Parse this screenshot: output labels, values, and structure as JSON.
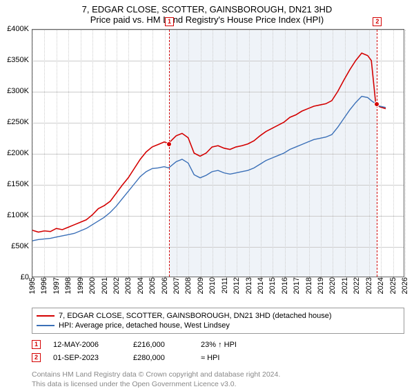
{
  "title_line1": "7, EDGAR CLOSE, SCOTTER, GAINSBOROUGH, DN21 3HD",
  "title_line2": "Price paid vs. HM Land Registry's House Price Index (HPI)",
  "chart": {
    "type": "line",
    "background_color": "#ffffff",
    "grid_color": "#cccccc",
    "y_axis": {
      "min": 0,
      "max": 400000,
      "step": 50000,
      "labels": [
        "£0",
        "£50K",
        "£100K",
        "£150K",
        "£200K",
        "£250K",
        "£300K",
        "£350K",
        "£400K"
      ]
    },
    "x_axis": {
      "min": 1995,
      "max": 2026,
      "labels": [
        "1995",
        "1996",
        "1997",
        "1998",
        "1999",
        "2000",
        "2001",
        "2002",
        "2003",
        "2004",
        "2005",
        "2006",
        "2007",
        "2008",
        "2009",
        "2010",
        "2011",
        "2012",
        "2013",
        "2014",
        "2015",
        "2016",
        "2017",
        "2018",
        "2019",
        "2020",
        "2021",
        "2022",
        "2023",
        "2024",
        "2025",
        "2026"
      ]
    },
    "shade": {
      "from_year": 2006.37,
      "to_year": 2023.67,
      "color": "rgba(120,160,200,0.12)"
    },
    "series": [
      {
        "name": "subject",
        "label": "7, EDGAR CLOSE, SCOTTER, GAINSBOROUGH, DN21 3HD (detached house)",
        "color": "#d40000",
        "line_width": 1.6,
        "points": [
          [
            1995.0,
            75000
          ],
          [
            1995.5,
            72000
          ],
          [
            1996.0,
            74000
          ],
          [
            1996.5,
            73000
          ],
          [
            1997.0,
            78000
          ],
          [
            1997.5,
            76000
          ],
          [
            1998.0,
            80000
          ],
          [
            1998.5,
            84000
          ],
          [
            1999.0,
            88000
          ],
          [
            1999.5,
            92000
          ],
          [
            2000.0,
            100000
          ],
          [
            2000.5,
            110000
          ],
          [
            2001.0,
            115000
          ],
          [
            2001.5,
            122000
          ],
          [
            2002.0,
            135000
          ],
          [
            2002.5,
            148000
          ],
          [
            2003.0,
            160000
          ],
          [
            2003.5,
            175000
          ],
          [
            2004.0,
            190000
          ],
          [
            2004.5,
            202000
          ],
          [
            2005.0,
            210000
          ],
          [
            2005.5,
            214000
          ],
          [
            2006.0,
            218000
          ],
          [
            2006.37,
            216000
          ],
          [
            2007.0,
            228000
          ],
          [
            2007.5,
            232000
          ],
          [
            2008.0,
            225000
          ],
          [
            2008.5,
            200000
          ],
          [
            2009.0,
            195000
          ],
          [
            2009.5,
            200000
          ],
          [
            2010.0,
            210000
          ],
          [
            2010.5,
            212000
          ],
          [
            2011.0,
            208000
          ],
          [
            2011.5,
            206000
          ],
          [
            2012.0,
            210000
          ],
          [
            2012.5,
            212000
          ],
          [
            2013.0,
            215000
          ],
          [
            2013.5,
            220000
          ],
          [
            2014.0,
            228000
          ],
          [
            2014.5,
            235000
          ],
          [
            2015.0,
            240000
          ],
          [
            2015.5,
            245000
          ],
          [
            2016.0,
            250000
          ],
          [
            2016.5,
            258000
          ],
          [
            2017.0,
            262000
          ],
          [
            2017.5,
            268000
          ],
          [
            2018.0,
            272000
          ],
          [
            2018.5,
            276000
          ],
          [
            2019.0,
            278000
          ],
          [
            2019.5,
            280000
          ],
          [
            2020.0,
            285000
          ],
          [
            2020.5,
            300000
          ],
          [
            2021.0,
            318000
          ],
          [
            2021.5,
            335000
          ],
          [
            2022.0,
            350000
          ],
          [
            2022.5,
            362000
          ],
          [
            2023.0,
            358000
          ],
          [
            2023.3,
            350000
          ],
          [
            2023.67,
            280000
          ],
          [
            2024.0,
            275000
          ],
          [
            2024.5,
            272000
          ]
        ]
      },
      {
        "name": "hpi",
        "label": "HPI: Average price, detached house, West Lindsey",
        "color": "#3a6fb7",
        "line_width": 1.4,
        "points": [
          [
            1995.0,
            58000
          ],
          [
            1995.5,
            60000
          ],
          [
            1996.0,
            61000
          ],
          [
            1996.5,
            62000
          ],
          [
            1997.0,
            64000
          ],
          [
            1997.5,
            66000
          ],
          [
            1998.0,
            68000
          ],
          [
            1998.5,
            70000
          ],
          [
            1999.0,
            74000
          ],
          [
            1999.5,
            78000
          ],
          [
            2000.0,
            84000
          ],
          [
            2000.5,
            90000
          ],
          [
            2001.0,
            96000
          ],
          [
            2001.5,
            104000
          ],
          [
            2002.0,
            114000
          ],
          [
            2002.5,
            126000
          ],
          [
            2003.0,
            138000
          ],
          [
            2003.5,
            150000
          ],
          [
            2004.0,
            162000
          ],
          [
            2004.5,
            170000
          ],
          [
            2005.0,
            175000
          ],
          [
            2005.5,
            176000
          ],
          [
            2006.0,
            178000
          ],
          [
            2006.37,
            176000
          ],
          [
            2007.0,
            186000
          ],
          [
            2007.5,
            190000
          ],
          [
            2008.0,
            184000
          ],
          [
            2008.5,
            165000
          ],
          [
            2009.0,
            160000
          ],
          [
            2009.5,
            164000
          ],
          [
            2010.0,
            170000
          ],
          [
            2010.5,
            172000
          ],
          [
            2011.0,
            168000
          ],
          [
            2011.5,
            166000
          ],
          [
            2012.0,
            168000
          ],
          [
            2012.5,
            170000
          ],
          [
            2013.0,
            172000
          ],
          [
            2013.5,
            176000
          ],
          [
            2014.0,
            182000
          ],
          [
            2014.5,
            188000
          ],
          [
            2015.0,
            192000
          ],
          [
            2015.5,
            196000
          ],
          [
            2016.0,
            200000
          ],
          [
            2016.5,
            206000
          ],
          [
            2017.0,
            210000
          ],
          [
            2017.5,
            214000
          ],
          [
            2018.0,
            218000
          ],
          [
            2018.5,
            222000
          ],
          [
            2019.0,
            224000
          ],
          [
            2019.5,
            226000
          ],
          [
            2020.0,
            230000
          ],
          [
            2020.5,
            242000
          ],
          [
            2021.0,
            256000
          ],
          [
            2021.5,
            270000
          ],
          [
            2022.0,
            282000
          ],
          [
            2022.5,
            292000
          ],
          [
            2023.0,
            290000
          ],
          [
            2023.3,
            285000
          ],
          [
            2023.67,
            280000
          ],
          [
            2024.0,
            276000
          ],
          [
            2024.5,
            274000
          ]
        ]
      }
    ],
    "markers": [
      {
        "id": "1",
        "year": 2006.37,
        "value": 216000,
        "color": "#d40000"
      },
      {
        "id": "2",
        "year": 2023.67,
        "value": 280000,
        "color": "#d40000"
      }
    ]
  },
  "legend": {
    "rows": [
      {
        "color": "#d40000",
        "label": "7, EDGAR CLOSE, SCOTTER, GAINSBOROUGH, DN21 3HD (detached house)"
      },
      {
        "color": "#3a6fb7",
        "label": "HPI: Average price, detached house, West Lindsey"
      }
    ]
  },
  "sales": [
    {
      "id": "1",
      "color": "#d40000",
      "date": "12-MAY-2006",
      "price": "£216,000",
      "pct": "23% ↑ HPI"
    },
    {
      "id": "2",
      "color": "#d40000",
      "date": "01-SEP-2023",
      "price": "£280,000",
      "pct": "≈ HPI"
    }
  ],
  "license_l1": "Contains HM Land Registry data © Crown copyright and database right 2024.",
  "license_l2": "This data is licensed under the Open Government Licence v3.0."
}
